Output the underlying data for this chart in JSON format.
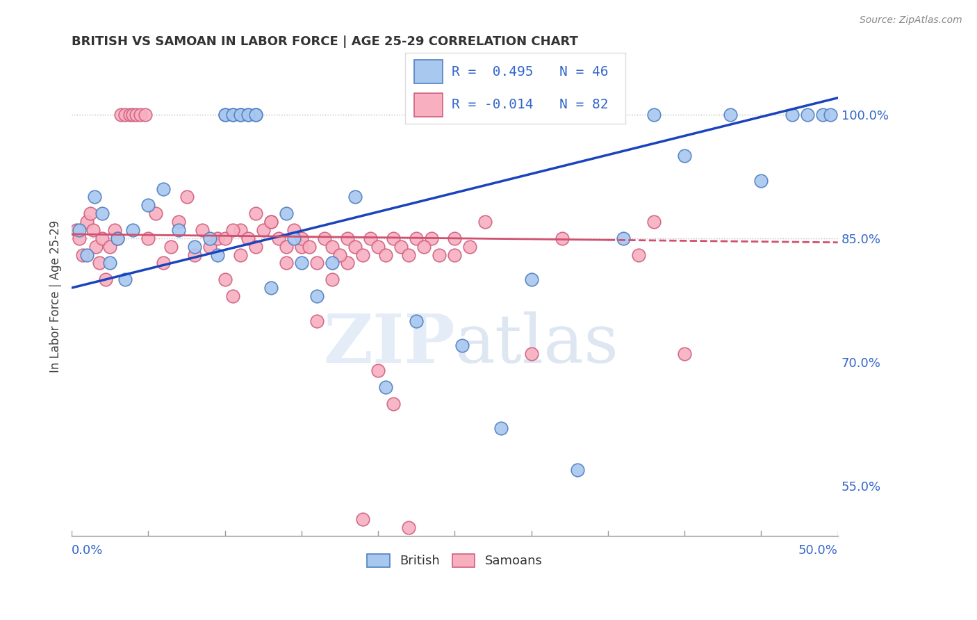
{
  "title": "BRITISH VS SAMOAN IN LABOR FORCE | AGE 25-29 CORRELATION CHART",
  "source": "Source: ZipAtlas.com",
  "ylabel": "In Labor Force | Age 25-29",
  "xlim": [
    0.0,
    50.0
  ],
  "ylim": [
    49.0,
    107.0
  ],
  "british_color": "#a8c8f0",
  "samoan_color": "#f8b0c0",
  "british_edge": "#5080c0",
  "samoan_edge": "#d06080",
  "trend_blue": "#1a44bb",
  "trend_pink": "#d05070",
  "legend_r_british": "R =  0.495",
  "legend_n_british": "N = 46",
  "legend_r_samoan": "R = -0.014",
  "legend_n_samoan": "N = 82",
  "british_x": [
    0.5,
    1.0,
    1.5,
    2.0,
    2.5,
    3.0,
    3.5,
    4.0,
    5.0,
    6.0,
    7.0,
    8.0,
    9.0,
    9.5,
    10.0,
    10.5,
    11.0,
    11.5,
    12.0,
    13.0,
    14.0,
    14.5,
    15.0,
    16.0,
    17.0,
    18.5,
    20.5,
    22.5,
    25.5,
    28.0,
    30.0,
    33.0,
    36.0,
    38.0,
    40.0,
    43.0,
    45.0,
    47.0,
    48.0,
    49.0,
    49.5,
    10.0,
    10.5,
    11.0,
    11.5,
    12.0
  ],
  "british_y": [
    86.0,
    83.0,
    90.0,
    88.0,
    82.0,
    85.0,
    80.0,
    86.0,
    89.0,
    91.0,
    86.0,
    84.0,
    85.0,
    83.0,
    100.0,
    100.0,
    100.0,
    100.0,
    100.0,
    79.0,
    88.0,
    85.0,
    82.0,
    78.0,
    82.0,
    90.0,
    67.0,
    75.0,
    72.0,
    62.0,
    80.0,
    57.0,
    85.0,
    100.0,
    95.0,
    100.0,
    92.0,
    100.0,
    100.0,
    100.0,
    100.0,
    100.0,
    100.0,
    100.0,
    100.0,
    100.0
  ],
  "samoan_x": [
    0.3,
    0.5,
    0.7,
    1.0,
    1.2,
    1.4,
    1.6,
    1.8,
    2.0,
    2.2,
    2.5,
    2.8,
    3.0,
    3.2,
    3.5,
    3.8,
    4.0,
    4.2,
    4.5,
    4.8,
    5.0,
    5.5,
    6.0,
    6.5,
    7.0,
    7.5,
    8.0,
    8.5,
    9.0,
    9.5,
    10.0,
    10.5,
    11.0,
    12.0,
    13.0,
    14.0,
    15.0,
    16.0,
    17.0,
    18.0,
    19.0,
    20.0,
    21.0,
    22.0,
    23.5,
    25.0,
    27.0,
    30.0,
    32.0,
    37.0,
    38.0,
    40.0,
    10.0,
    10.5,
    11.0,
    11.5,
    12.0,
    12.5,
    13.0,
    13.5,
    14.0,
    14.5,
    15.0,
    15.5,
    16.0,
    16.5,
    17.0,
    17.5,
    18.0,
    18.5,
    19.0,
    19.5,
    20.0,
    20.5,
    21.0,
    21.5,
    22.0,
    22.5,
    23.0,
    24.0,
    25.0,
    26.0
  ],
  "samoan_y": [
    86.0,
    85.0,
    83.0,
    87.0,
    88.0,
    86.0,
    84.0,
    82.0,
    85.0,
    80.0,
    84.0,
    86.0,
    85.0,
    100.0,
    100.0,
    100.0,
    100.0,
    100.0,
    100.0,
    100.0,
    85.0,
    88.0,
    82.0,
    84.0,
    87.0,
    90.0,
    83.0,
    86.0,
    84.0,
    85.0,
    80.0,
    78.0,
    86.0,
    88.0,
    87.0,
    82.0,
    84.0,
    75.0,
    80.0,
    82.0,
    51.0,
    69.0,
    65.0,
    50.0,
    85.0,
    83.0,
    87.0,
    71.0,
    85.0,
    83.0,
    87.0,
    71.0,
    85.0,
    86.0,
    83.0,
    85.0,
    84.0,
    86.0,
    87.0,
    85.0,
    84.0,
    86.0,
    85.0,
    84.0,
    82.0,
    85.0,
    84.0,
    83.0,
    85.0,
    84.0,
    83.0,
    85.0,
    84.0,
    83.0,
    85.0,
    84.0,
    83.0,
    85.0,
    84.0,
    83.0,
    85.0,
    84.0
  ],
  "blue_trend_x0": 0.0,
  "blue_trend_y0": 79.0,
  "blue_trend_x1": 50.0,
  "blue_trend_y1": 102.0,
  "pink_trend_x0": 0.0,
  "pink_trend_y0": 85.5,
  "pink_trend_x1": 50.0,
  "pink_trend_y1": 84.5,
  "pink_solid_end": 35.0,
  "ytick_vals": [
    55.0,
    70.0,
    85.0,
    100.0
  ],
  "ytick_labels": [
    "55.0%",
    "70.0%",
    "85.0%",
    "100.0%"
  ]
}
